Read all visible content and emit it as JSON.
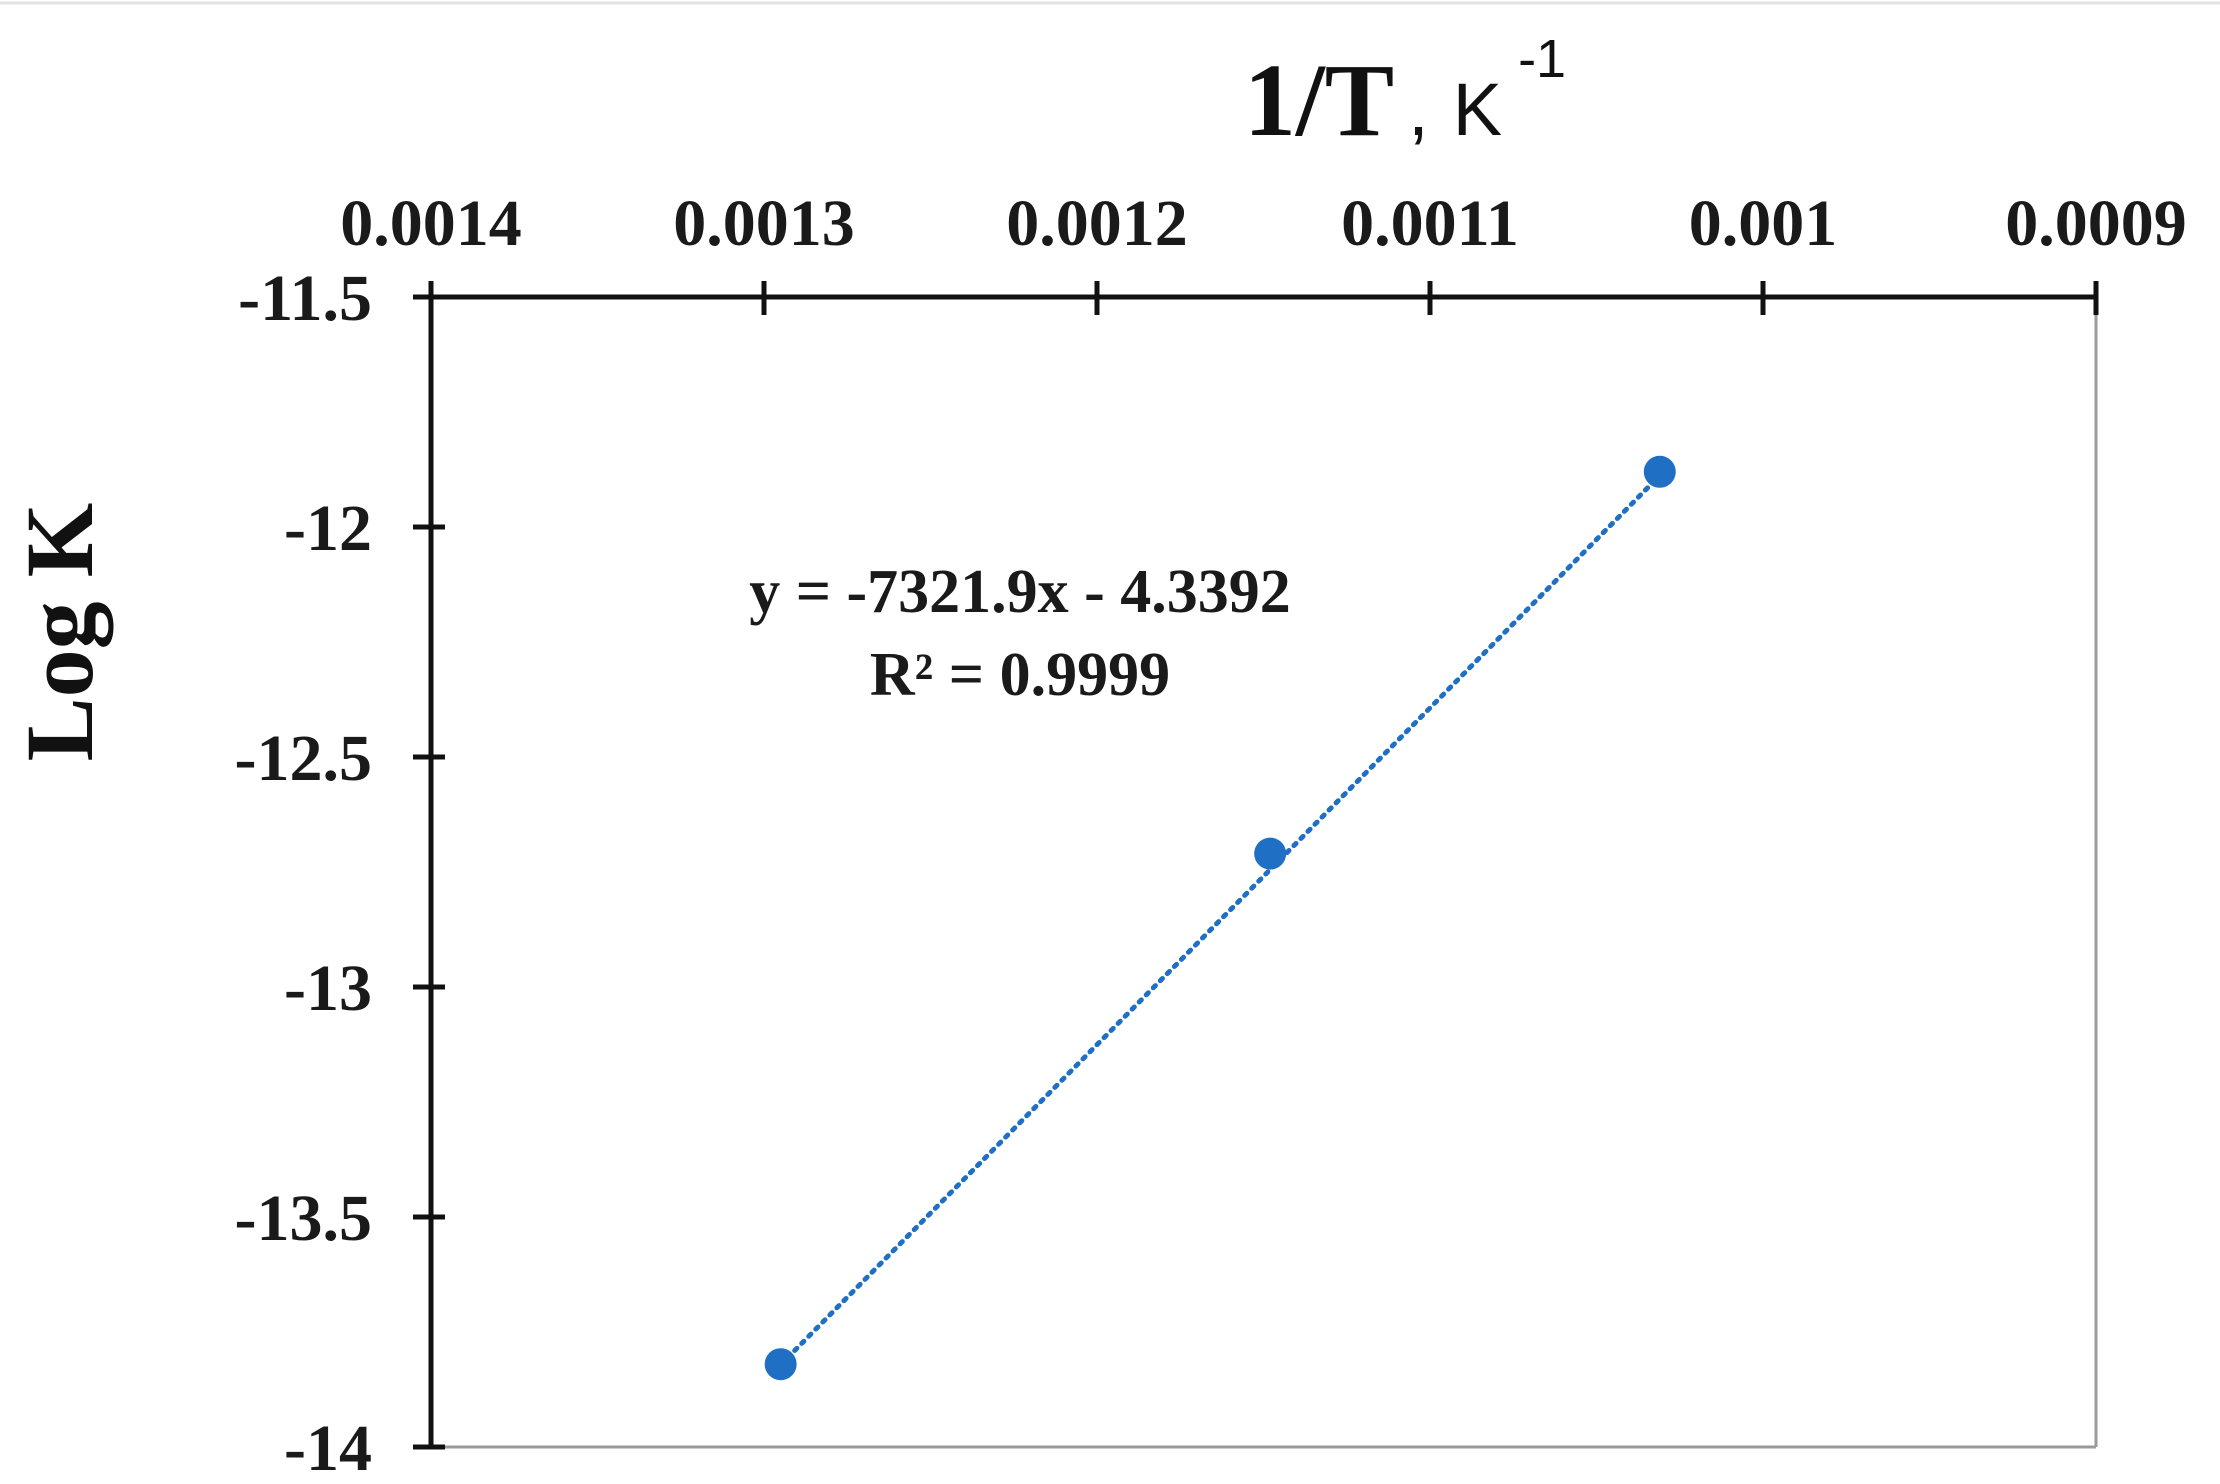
{
  "chart_data": {
    "type": "scatter",
    "title": "",
    "xlabel": "1/T",
    "xlabel_unit": "K",
    "xlabel_unit_exponent": "-1",
    "ylabel": "Log K",
    "x_axis_position": "top",
    "x_axis_reversed": true,
    "xlim": [
      0.0014,
      0.0009
    ],
    "ylim": [
      -14,
      -11.5
    ],
    "x_ticks": [
      "0.0014",
      "0.0013",
      "0.0012",
      "0.0011",
      "0.001",
      "0.0009"
    ],
    "y_ticks": [
      "-11.5",
      "-12",
      "-12.5",
      "-13",
      "-13.5",
      "-14"
    ],
    "grid": false,
    "legend": "none",
    "series": [
      {
        "x": [
          0.001295,
          0.001148,
          0.001031
        ],
        "y": [
          -13.82,
          -12.71,
          -11.88
        ],
        "color": "#1f6fc5",
        "marker": "circle"
      }
    ],
    "trendline": {
      "style": "dotted",
      "color": "#1f6fc5",
      "slope": -7321.9,
      "intercept": -4.3392
    },
    "annotations": {
      "equation": "y = -7321.9x - 4.3392",
      "r_squared": "R² = 0.9999"
    }
  }
}
